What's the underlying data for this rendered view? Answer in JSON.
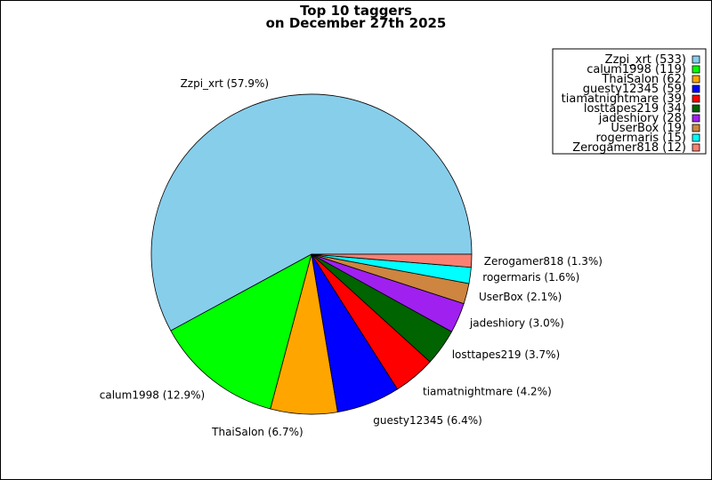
{
  "chart_data": {
    "type": "pie",
    "title_line1": "Top 10 taggers",
    "title_line2": "on December 27th 2025",
    "start_angle_deg": 0,
    "direction": "clockwise",
    "slices": [
      {
        "name": "Zzpi_xrt",
        "value": 533,
        "pct": "57.9%",
        "color": "#87CEEB",
        "legend": "Zzpi_xrt (533)",
        "label": "Zzpi_xrt (57.9%)"
      },
      {
        "name": "calum1998",
        "value": 119,
        "pct": "12.9%",
        "color": "#00FF00",
        "legend": "calum1998 (119)",
        "label": "calum1998 (12.9%)"
      },
      {
        "name": "ThaiSalon",
        "value": 62,
        "pct": "6.7%",
        "color": "#FFA500",
        "legend": "ThaiSalon (62)",
        "label": "ThaiSalon (6.7%)"
      },
      {
        "name": "guesty12345",
        "value": 59,
        "pct": "6.4%",
        "color": "#0000FF",
        "legend": "guesty12345 (59)",
        "label": "guesty12345 (6.4%)"
      },
      {
        "name": "tiamatnightmare",
        "value": 39,
        "pct": "4.2%",
        "color": "#FF0000",
        "legend": "tiamatnightmare (39)",
        "label": "tiamatnightmare (4.2%)"
      },
      {
        "name": "losttapes219",
        "value": 34,
        "pct": "3.7%",
        "color": "#006400",
        "legend": "losttapes219 (34)",
        "label": "losttapes219 (3.7%)"
      },
      {
        "name": "jadeshiory",
        "value": 28,
        "pct": "3.0%",
        "color": "#A020F0",
        "legend": "jadeshiory (28)",
        "label": "jadeshiory (3.0%)"
      },
      {
        "name": "UserBox",
        "value": 19,
        "pct": "2.1%",
        "color": "#CD853F",
        "legend": "UserBox (19)",
        "label": "UserBox (2.1%)"
      },
      {
        "name": "rogermaris",
        "value": 15,
        "pct": "1.6%",
        "color": "#00FFFF",
        "legend": "rogermaris (15)",
        "label": "rogermaris (1.6%)"
      },
      {
        "name": "Zerogamer818",
        "value": 12,
        "pct": "1.3%",
        "color": "#FA8072",
        "legend": "Zerogamer818 (12)",
        "label": "Zerogamer818 (1.3%)"
      }
    ],
    "legend_position": "top-right"
  }
}
